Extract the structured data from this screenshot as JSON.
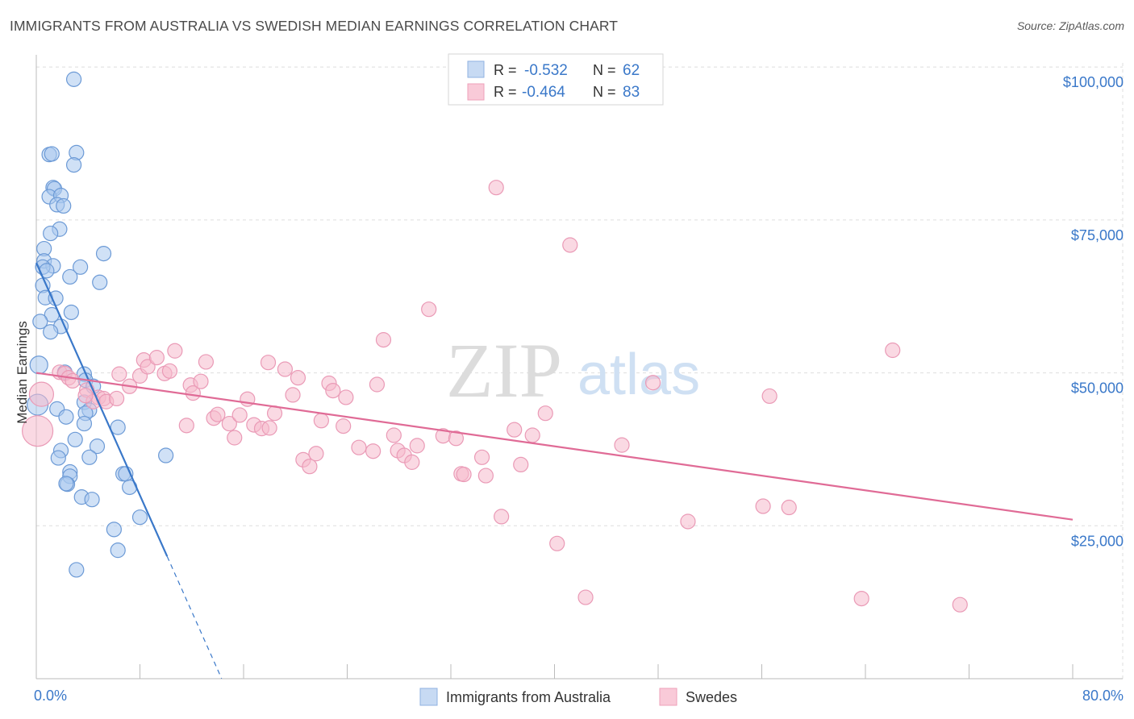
{
  "title": "IMMIGRANTS FROM AUSTRALIA VS SWEDISH MEDIAN EARNINGS CORRELATION CHART",
  "source": "Source: ZipAtlas.com",
  "watermark": {
    "zip": "ZIP",
    "atlas": "atlas"
  },
  "colors": {
    "blue": "#3a78c9",
    "blue_fill": "#aac8ef",
    "pink": "#e06b96",
    "pink_fill": "#f5b9cc",
    "grid": "#dddddd",
    "tick_text": "#3a78c9"
  },
  "chart_data": {
    "type": "scatter",
    "title": "IMMIGRANTS FROM AUSTRALIA VS SWEDISH MEDIAN EARNINGS CORRELATION CHART",
    "xlabel": "",
    "ylabel": "Median Earnings",
    "xlim": [
      0,
      80
    ],
    "ylim": [
      0,
      102000
    ],
    "x_tick_labels": [
      "0.0%",
      "80.0%"
    ],
    "y_ticks": [
      25000,
      50000,
      75000,
      100000
    ],
    "y_tick_labels": [
      "$25,000",
      "$50,000",
      "$75,000",
      "$100,000"
    ],
    "grid": true,
    "legend_position": "top-center",
    "legend": {
      "r_label": "R =",
      "n_label": "N =",
      "entries": [
        {
          "name": "Immigrants from Australia",
          "r": "-0.532",
          "n": "62"
        },
        {
          "name": "Swedes",
          "r": "-0.464",
          "n": "83"
        }
      ]
    },
    "series": [
      {
        "name": "Immigrants from Australia",
        "color": "blue",
        "points": [
          [
            2.9,
            98000
          ],
          [
            1.0,
            85700
          ],
          [
            1.2,
            85800
          ],
          [
            3.1,
            86000
          ],
          [
            2.9,
            84000
          ],
          [
            1.3,
            80300
          ],
          [
            1.4,
            80100
          ],
          [
            1.0,
            78800
          ],
          [
            1.9,
            79000
          ],
          [
            1.6,
            77500
          ],
          [
            2.1,
            77300
          ],
          [
            1.8,
            73500
          ],
          [
            1.1,
            72800
          ],
          [
            0.6,
            70300
          ],
          [
            0.6,
            68300
          ],
          [
            1.3,
            67500
          ],
          [
            0.5,
            67300
          ],
          [
            3.4,
            67300
          ],
          [
            5.2,
            69500
          ],
          [
            0.8,
            66700
          ],
          [
            2.6,
            65700
          ],
          [
            4.9,
            64800
          ],
          [
            0.5,
            64300
          ],
          [
            0.7,
            62300
          ],
          [
            1.5,
            62200
          ],
          [
            2.7,
            59900
          ],
          [
            1.2,
            59500
          ],
          [
            0.3,
            58400
          ],
          [
            1.9,
            57600
          ],
          [
            1.1,
            56700
          ],
          [
            0.2,
            51300
          ],
          [
            3.7,
            49800
          ],
          [
            2.2,
            50100
          ],
          [
            3.8,
            48800
          ],
          [
            0.1,
            44800
          ],
          [
            4.4,
            47800
          ],
          [
            3.7,
            45200
          ],
          [
            4.1,
            43900
          ],
          [
            1.6,
            44100
          ],
          [
            2.3,
            42800
          ],
          [
            3.8,
            43400
          ],
          [
            3.7,
            41700
          ],
          [
            6.3,
            41100
          ],
          [
            3.0,
            39100
          ],
          [
            4.7,
            38000
          ],
          [
            1.9,
            37300
          ],
          [
            4.1,
            36200
          ],
          [
            1.7,
            36100
          ],
          [
            10.0,
            36500
          ],
          [
            2.6,
            33800
          ],
          [
            2.6,
            33100
          ],
          [
            6.7,
            33500
          ],
          [
            6.9,
            33500
          ],
          [
            2.4,
            31800
          ],
          [
            2.3,
            31900
          ],
          [
            7.2,
            31300
          ],
          [
            3.5,
            29700
          ],
          [
            4.3,
            29300
          ],
          [
            8.0,
            26400
          ],
          [
            6.0,
            24400
          ],
          [
            6.3,
            21000
          ],
          [
            3.1,
            17800
          ]
        ]
      },
      {
        "name": "Swedes",
        "color": "pink",
        "points": [
          [
            0.4,
            46500
          ],
          [
            0.1,
            40500
          ],
          [
            1.8,
            50100
          ],
          [
            2.2,
            49900
          ],
          [
            2.5,
            49200
          ],
          [
            2.8,
            48700
          ],
          [
            3.9,
            47200
          ],
          [
            4.8,
            46000
          ],
          [
            4.4,
            45300
          ],
          [
            5.2,
            45800
          ],
          [
            5.4,
            45300
          ],
          [
            6.2,
            45800
          ],
          [
            6.4,
            49800
          ],
          [
            7.2,
            47800
          ],
          [
            8.0,
            49500
          ],
          [
            8.3,
            52100
          ],
          [
            8.6,
            51000
          ],
          [
            9.3,
            52500
          ],
          [
            9.9,
            49900
          ],
          [
            10.3,
            50300
          ],
          [
            10.7,
            53600
          ],
          [
            11.6,
            41400
          ],
          [
            11.9,
            48000
          ],
          [
            12.1,
            46700
          ],
          [
            12.7,
            48600
          ],
          [
            13.1,
            51800
          ],
          [
            13.7,
            42600
          ],
          [
            14.0,
            43200
          ],
          [
            14.9,
            41700
          ],
          [
            15.3,
            39400
          ],
          [
            15.7,
            43100
          ],
          [
            16.3,
            45700
          ],
          [
            16.8,
            41500
          ],
          [
            17.4,
            40900
          ],
          [
            18.0,
            41000
          ],
          [
            17.9,
            51700
          ],
          [
            18.4,
            43400
          ],
          [
            19.2,
            50600
          ],
          [
            19.8,
            46400
          ],
          [
            20.2,
            49200
          ],
          [
            20.6,
            35800
          ],
          [
            21.1,
            34700
          ],
          [
            21.6,
            36800
          ],
          [
            22.0,
            42200
          ],
          [
            22.6,
            48300
          ],
          [
            22.9,
            47100
          ],
          [
            23.7,
            41300
          ],
          [
            23.9,
            46000
          ],
          [
            24.9,
            37800
          ],
          [
            26.0,
            37200
          ],
          [
            26.3,
            48100
          ],
          [
            26.8,
            55400
          ],
          [
            27.6,
            39800
          ],
          [
            27.9,
            37300
          ],
          [
            28.4,
            36500
          ],
          [
            29.0,
            35400
          ],
          [
            29.4,
            38100
          ],
          [
            30.3,
            60400
          ],
          [
            31.4,
            39700
          ],
          [
            32.4,
            39300
          ],
          [
            32.8,
            33500
          ],
          [
            33.0,
            33400
          ],
          [
            34.4,
            36200
          ],
          [
            34.7,
            33200
          ],
          [
            35.5,
            80300
          ],
          [
            35.9,
            26500
          ],
          [
            36.9,
            40700
          ],
          [
            37.4,
            35000
          ],
          [
            38.3,
            39800
          ],
          [
            39.3,
            43400
          ],
          [
            40.2,
            22100
          ],
          [
            41.2,
            70900
          ],
          [
            42.4,
            13300
          ],
          [
            45.2,
            38200
          ],
          [
            47.6,
            48400
          ],
          [
            50.3,
            25700
          ],
          [
            56.1,
            28200
          ],
          [
            56.6,
            46200
          ],
          [
            58.1,
            28000
          ],
          [
            63.7,
            13100
          ],
          [
            66.1,
            53700
          ],
          [
            71.3,
            12100
          ],
          [
            3.8,
            46300
          ]
        ]
      }
    ],
    "trend_lines": [
      {
        "series": "Immigrants from Australia",
        "x0": 0,
        "y0": 68000,
        "x1": 10.1,
        "y1": 20000,
        "dashed_to_x": 14.3
      },
      {
        "series": "Swedes",
        "x0": 0,
        "y0": 50000,
        "x1": 80,
        "y1": 26000
      }
    ]
  }
}
